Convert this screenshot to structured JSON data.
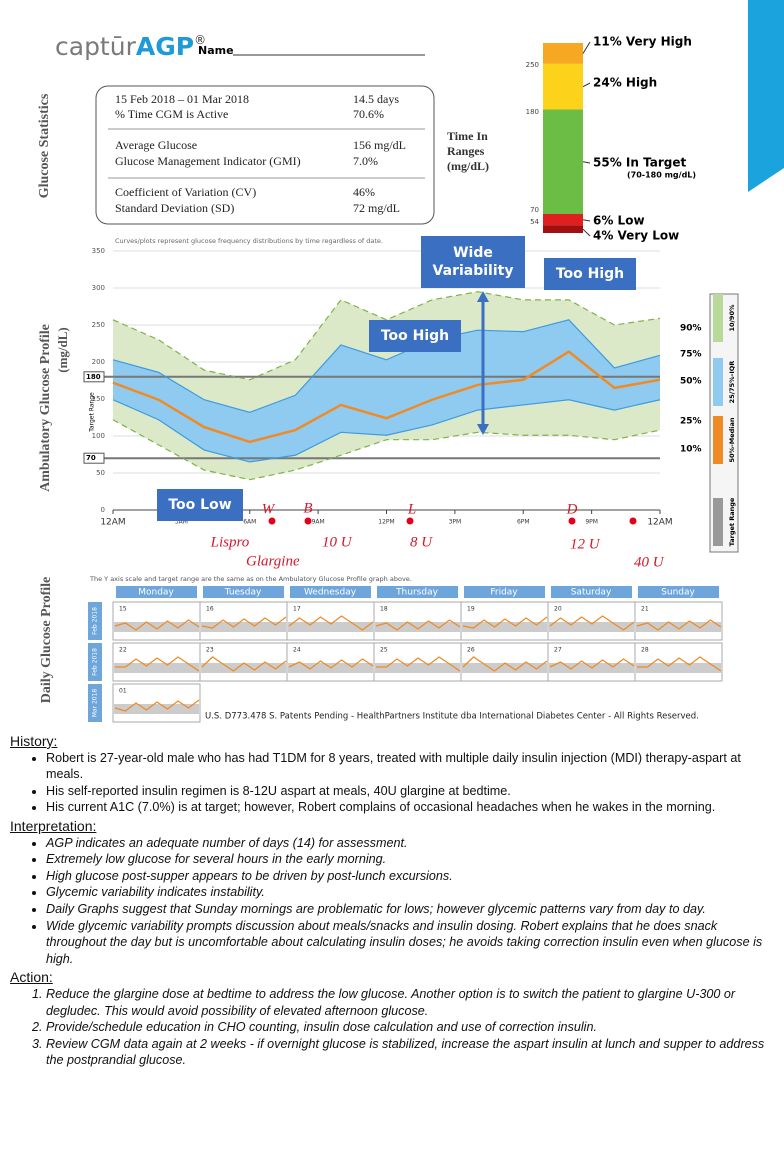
{
  "header": {
    "logo_prefix": "captūr",
    "logo_brand": "AGP",
    "logo_mark": "®",
    "name_label": "Name"
  },
  "side_labels": {
    "statistics": "Glucose Statistics",
    "agp_line1": "Ambulatory Glucose Profile",
    "agp_line2": "(mg/dL)",
    "daily": "Daily Glucose Profile"
  },
  "stats": {
    "rows": [
      [
        "15 Feb 2018 – 01 Mar 2018",
        "14.5 days"
      ],
      [
        "% Time CGM is Active",
        "70.6%"
      ],
      [
        "Average Glucose",
        "156 mg/dL"
      ],
      [
        "Glucose Management Indicator (GMI)",
        "7.0%"
      ],
      [
        "Coefficient of Variation (CV)",
        "46%"
      ],
      [
        "Standard Deviation (SD)",
        "72 mg/dL"
      ]
    ]
  },
  "time_in_ranges": {
    "title_lines": [
      "Time In",
      "Ranges",
      "(mg/dL)"
    ],
    "segments": [
      {
        "value": 11,
        "text": "11% Very High",
        "color": "#f7a823"
      },
      {
        "value": 24,
        "text": "24% High",
        "color": "#fcd21b"
      },
      {
        "value": 55,
        "text": "55% In Target",
        "note": "(70-180 mg/dL)",
        "color": "#6cbd45"
      },
      {
        "value": 6,
        "text": "6% Low",
        "color": "#e02020"
      },
      {
        "value": 4,
        "text": "4% Very Low",
        "color": "#a01010"
      }
    ],
    "scale_labels": [
      "250",
      "180",
      "70",
      "54"
    ]
  },
  "agp": {
    "note": "Curves/plots represent glucose frequency distributions by time regardless of date.",
    "x": [
      0,
      2,
      4,
      6,
      8,
      10,
      12,
      14,
      16,
      18,
      20,
      22,
      24
    ],
    "xlim": [
      0,
      24
    ],
    "xticks": [
      {
        "value": 0,
        "label": "12AM"
      },
      {
        "value": 3,
        "label": "3AM"
      },
      {
        "value": 6,
        "label": "6AM"
      },
      {
        "value": 9,
        "label": "9AM"
      },
      {
        "value": 12,
        "label": "12PM"
      },
      {
        "value": 15,
        "label": "3PM"
      },
      {
        "value": 18,
        "label": "6PM"
      },
      {
        "value": 21,
        "label": "9PM"
      },
      {
        "value": 24,
        "label": "12AM"
      }
    ],
    "ylim": [
      0,
      350
    ],
    "yticks": [
      0,
      50,
      100,
      150,
      200,
      250,
      300,
      350
    ],
    "grid": true,
    "target": [
      {
        "value": 70,
        "label": "70"
      },
      {
        "value": 180,
        "label": "180"
      }
    ],
    "target_label": "Target Range",
    "series": [
      {
        "name": "10%",
        "color": "#7fb24a",
        "values": [
          122,
          88,
          54,
          41,
          54,
          74,
          95,
          95,
          105,
          101,
          101,
          95,
          108
        ]
      },
      {
        "name": "25%",
        "color": "#3d9be0",
        "values": [
          149,
          122,
          81,
          65,
          74,
          105,
          101,
          115,
          135,
          142,
          149,
          135,
          149
        ]
      },
      {
        "name": "50%",
        "color": "#f08a24",
        "values": [
          172,
          149,
          112,
          92,
          108,
          142,
          124,
          149,
          169,
          176,
          214,
          165,
          176
        ]
      },
      {
        "name": "75%",
        "color": "#3d9be0",
        "values": [
          203,
          186,
          149,
          132,
          155,
          223,
          203,
          230,
          243,
          241,
          257,
          192,
          209
        ]
      },
      {
        "name": "90%",
        "color": "#7fb24a",
        "values": [
          257,
          230,
          189,
          176,
          203,
          284,
          257,
          284,
          295,
          284,
          284,
          250,
          259
        ]
      }
    ],
    "legend": [
      "10/90%",
      "25/75%-IQR",
      "50%-Median",
      "Target Range"
    ],
    "callouts": [
      {
        "lines": [
          "Wide",
          "Variability"
        ]
      },
      {
        "lines": [
          "Too High"
        ]
      },
      {
        "lines": [
          "Too High"
        ]
      },
      {
        "lines": [
          "Too Low"
        ]
      }
    ],
    "handwritten": [
      "W",
      "B",
      "L",
      "D",
      "Lispro",
      "Glargine",
      "10 U",
      "8 U",
      "12 U",
      "40 U"
    ]
  },
  "daily": {
    "note": "The Y axis scale and target range are the same as on the Ambulatory Glucose Profile graph above.",
    "days": [
      "Monday",
      "Tuesday",
      "Wednesday",
      "Thursday",
      "Friday",
      "Saturday",
      "Sunday"
    ],
    "weeks": [
      {
        "label": "Feb 2018",
        "dates": [
          "15",
          "16",
          "17",
          "18",
          "19",
          "20",
          "21"
        ]
      },
      {
        "label": "Feb 2018",
        "dates": [
          "22",
          "23",
          "24",
          "25",
          "26",
          "27",
          "28"
        ]
      },
      {
        "label": "Mar 2018",
        "dates": [
          "01"
        ]
      }
    ],
    "footer": "U.S. D773.478 S. Patents Pending - HealthPartners Institute dba International Diabetes Center - All Rights Reserved."
  },
  "history": {
    "title": "History:",
    "items": [
      "Robert is 27-year-old male who has had T1DM for 8 years, treated with multiple daily insulin injection (MDI) therapy-aspart at meals.",
      "His self-reported insulin regimen is 8-12U aspart at meals, 40U glargine at bedtime.",
      "His current A1C (7.0%) is at target; however, Robert complains of occasional headaches when he wakes in the morning."
    ]
  },
  "interpretation": {
    "title": "Interpretation:",
    "items": [
      "AGP indicates an adequate number of days (14) for assessment.",
      "Extremely low glucose for several hours in the early morning.",
      "High glucose post-supper appears to be driven by post-lunch excursions.",
      "Glycemic variability indicates instability.",
      "Daily Graphs suggest that Sunday mornings are problematic for lows; however glycemic patterns vary from day to day.",
      "Wide glycemic variability prompts discussion about meals/snacks and insulin dosing. Robert explains that he does snack throughout the day but is uncomfortable about calculating insulin doses; he avoids taking correction insulin even when glucose is high."
    ]
  },
  "action": {
    "title": "Action:",
    "items": [
      "Reduce the glargine dose at bedtime to address the low glucose.  Another option is to switch the patient to glargine U-300 or degludec. This would avoid possibility of elevated afternoon glucose.",
      "Provide/schedule education in CHO counting, insulin dose calculation and use of correction insulin.",
      "Review CGM data again at 2 weeks - if overnight glucose is stabilized, increase the aspart insulin at lunch and supper to address the postprandial glucose."
    ]
  }
}
